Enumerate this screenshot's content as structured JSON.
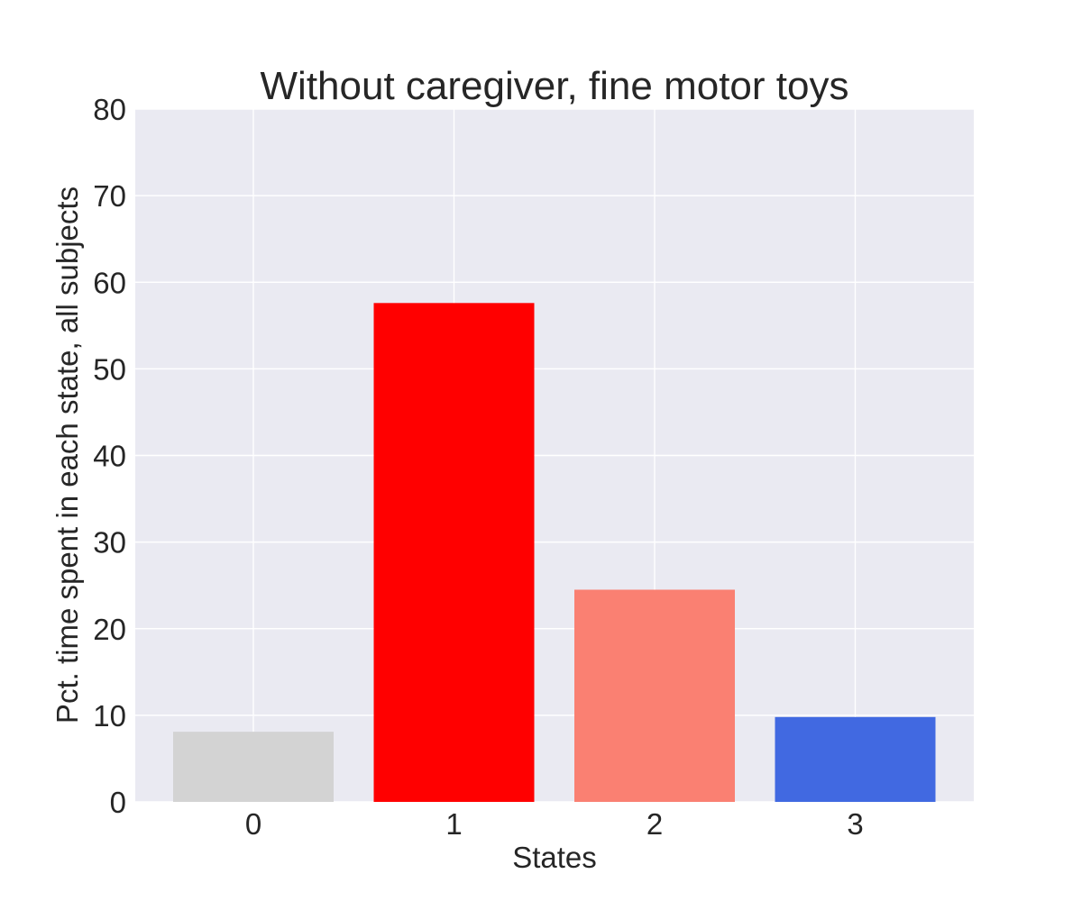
{
  "chart_data": {
    "type": "bar",
    "title": "Without caregiver, fine motor toys",
    "xlabel": "States",
    "ylabel": "Pct. time spent in each state, all subjects",
    "categories": [
      "0",
      "1",
      "2",
      "3"
    ],
    "values": [
      8.1,
      57.6,
      24.5,
      9.8
    ],
    "bar_colors": [
      "#d3d3d3",
      "#ff0000",
      "#fa8072",
      "#4169e1"
    ],
    "ylim": [
      0,
      80
    ],
    "yticks": [
      "0",
      "10",
      "20",
      "30",
      "40",
      "50",
      "60",
      "70",
      "80"
    ],
    "grid": true,
    "background_color": "#eaeaf2",
    "legend": "none"
  }
}
